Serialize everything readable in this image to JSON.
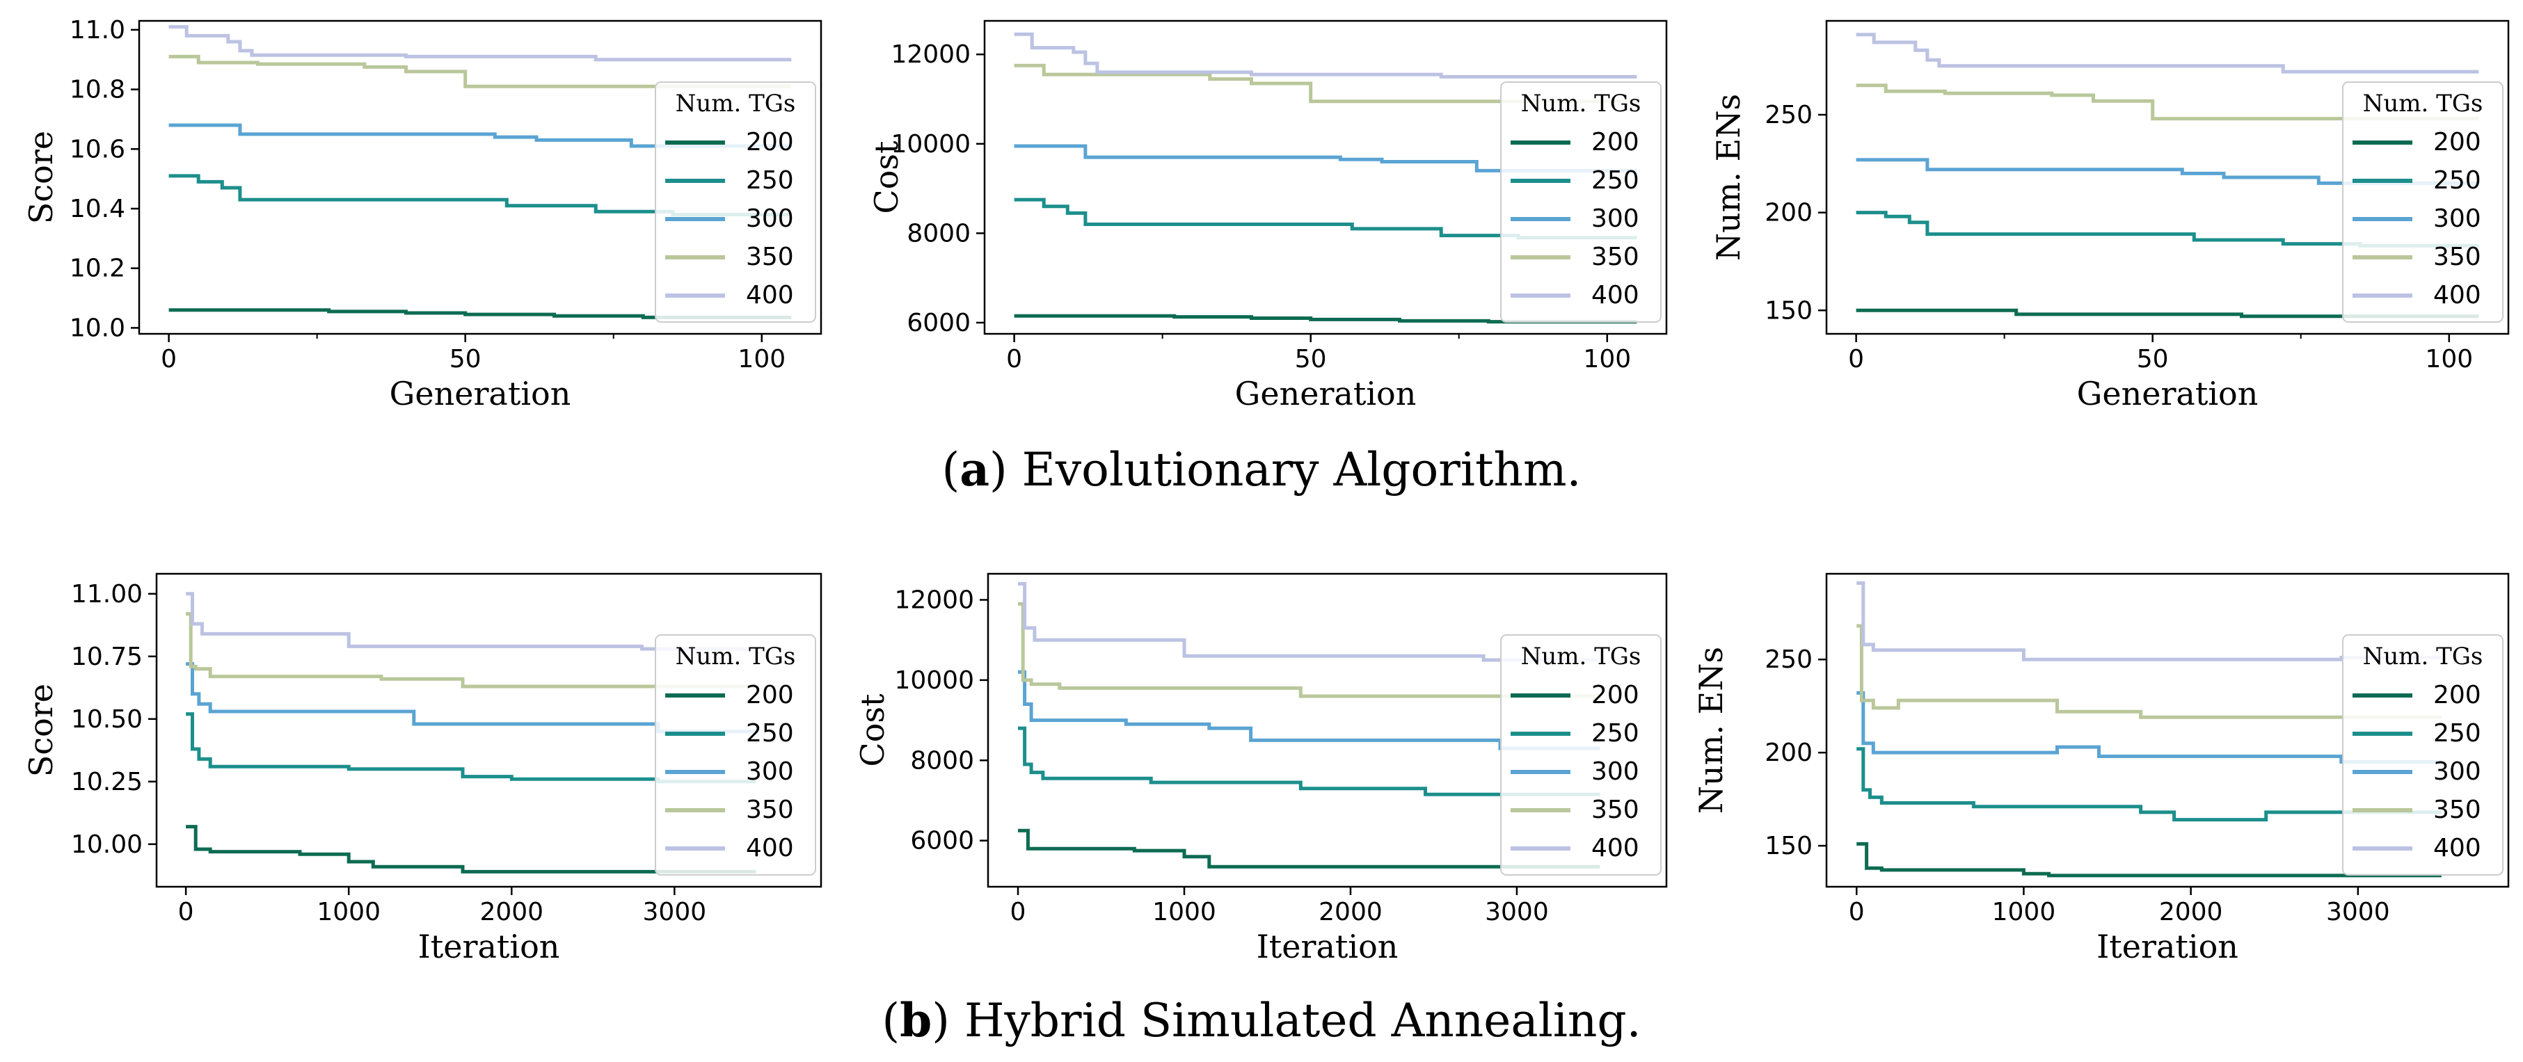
{
  "captions": {
    "a_prefix": "(",
    "a_letter": "a",
    "a_text": ") Evolutionary Algorithm.",
    "b_prefix": "(",
    "b_letter": "b",
    "b_text": ") Hybrid Simulated Annealing."
  },
  "series_colors": {
    "200": "#0d6b52",
    "250": "#1c8f8c",
    "300": "#5aa4d3",
    "350": "#b9c79a",
    "400": "#bcc2e3"
  },
  "chart_data": [
    {
      "id": "ea-score",
      "type": "line",
      "xlabel": "Generation",
      "ylabel": "Score",
      "xlim": [
        -5,
        110
      ],
      "ylim": [
        9.98,
        11.03
      ],
      "xticks": [
        0,
        50,
        100
      ],
      "xtick_labels": [
        "0",
        "50",
        "100"
      ],
      "minor_xticks": [
        25,
        75
      ],
      "yticks": [
        10.0,
        10.2,
        10.4,
        10.6,
        10.8,
        11.0
      ],
      "ytick_labels": [
        "10.0",
        "10.2",
        "10.4",
        "10.6",
        "10.8",
        "11.0"
      ],
      "legend_title": "Num. TGs",
      "legend_position": "right",
      "series": [
        {
          "name": "200",
          "x": [
            0,
            27,
            40,
            50,
            65,
            80,
            105
          ],
          "y": [
            10.06,
            10.055,
            10.05,
            10.045,
            10.04,
            10.035,
            10.035
          ]
        },
        {
          "name": "250",
          "x": [
            0,
            5,
            9,
            12,
            50,
            57,
            72,
            85,
            105
          ],
          "y": [
            10.51,
            10.49,
            10.47,
            10.43,
            10.43,
            10.41,
            10.39,
            10.38,
            10.38
          ]
        },
        {
          "name": "300",
          "x": [
            0,
            10,
            12,
            50,
            55,
            62,
            78,
            105
          ],
          "y": [
            10.68,
            10.68,
            10.65,
            10.65,
            10.64,
            10.63,
            10.61,
            10.61
          ]
        },
        {
          "name": "350",
          "x": [
            0,
            5,
            15,
            33,
            40,
            50,
            105
          ],
          "y": [
            10.91,
            10.89,
            10.885,
            10.875,
            10.86,
            10.81,
            10.81
          ]
        },
        {
          "name": "400",
          "x": [
            0,
            3,
            10,
            12,
            14,
            40,
            72,
            105
          ],
          "y": [
            11.01,
            10.98,
            10.96,
            10.93,
            10.915,
            10.91,
            10.9,
            10.9
          ]
        }
      ]
    },
    {
      "id": "ea-cost",
      "type": "line",
      "xlabel": "Generation",
      "ylabel": "Cost",
      "xlim": [
        -5,
        110
      ],
      "ylim": [
        5750,
        12750
      ],
      "xticks": [
        0,
        50,
        100
      ],
      "xtick_labels": [
        "0",
        "50",
        "100"
      ],
      "minor_xticks": [
        25,
        75
      ],
      "yticks": [
        6000,
        8000,
        10000,
        12000
      ],
      "ytick_labels": [
        "6000",
        "8000",
        "10000",
        "12000"
      ],
      "legend_title": "Num. TGs",
      "legend_position": "right",
      "series": [
        {
          "name": "200",
          "x": [
            0,
            27,
            40,
            50,
            65,
            80,
            105
          ],
          "y": [
            6150,
            6130,
            6100,
            6070,
            6040,
            6020,
            6020
          ]
        },
        {
          "name": "250",
          "x": [
            0,
            5,
            9,
            12,
            50,
            57,
            72,
            85,
            105
          ],
          "y": [
            8750,
            8600,
            8450,
            8200,
            8200,
            8100,
            7950,
            7900,
            7900
          ]
        },
        {
          "name": "300",
          "x": [
            0,
            10,
            12,
            50,
            55,
            62,
            78,
            105
          ],
          "y": [
            9950,
            9950,
            9700,
            9700,
            9650,
            9600,
            9400,
            9400
          ]
        },
        {
          "name": "350",
          "x": [
            0,
            5,
            15,
            33,
            40,
            50,
            105
          ],
          "y": [
            11750,
            11550,
            11550,
            11450,
            11350,
            10950,
            10950
          ]
        },
        {
          "name": "400",
          "x": [
            0,
            3,
            10,
            12,
            14,
            40,
            72,
            105
          ],
          "y": [
            12450,
            12150,
            12050,
            11800,
            11600,
            11550,
            11500,
            11500
          ]
        }
      ]
    },
    {
      "id": "ea-ens",
      "type": "line",
      "xlabel": "Generation",
      "ylabel": "Num. ENs",
      "xlim": [
        -5,
        110
      ],
      "ylim": [
        138,
        298
      ],
      "xticks": [
        0,
        50,
        100
      ],
      "xtick_labels": [
        "0",
        "50",
        "100"
      ],
      "minor_xticks": [
        25,
        75
      ],
      "yticks": [
        150,
        200,
        250
      ],
      "ytick_labels": [
        "150",
        "200",
        "250"
      ],
      "legend_title": "Num. TGs",
      "legend_position": "right",
      "series": [
        {
          "name": "200",
          "x": [
            0,
            27,
            40,
            50,
            65,
            80,
            105
          ],
          "y": [
            150,
            148,
            148,
            148,
            147,
            147,
            147
          ]
        },
        {
          "name": "250",
          "x": [
            0,
            5,
            9,
            12,
            50,
            57,
            72,
            85,
            105
          ],
          "y": [
            200,
            198,
            195,
            189,
            189,
            186,
            184,
            183,
            183
          ]
        },
        {
          "name": "300",
          "x": [
            0,
            10,
            12,
            50,
            55,
            62,
            78,
            105
          ],
          "y": [
            227,
            227,
            222,
            222,
            220,
            218,
            215,
            215
          ]
        },
        {
          "name": "350",
          "x": [
            0,
            5,
            15,
            33,
            40,
            50,
            105
          ],
          "y": [
            265,
            262,
            261,
            260,
            257,
            248,
            248
          ]
        },
        {
          "name": "400",
          "x": [
            0,
            3,
            10,
            12,
            14,
            40,
            72,
            105
          ],
          "y": [
            291,
            287,
            283,
            278,
            275,
            275,
            272,
            272
          ]
        }
      ]
    },
    {
      "id": "hsa-score",
      "type": "line",
      "xlabel": "Iteration",
      "ylabel": "Score",
      "xlim": [
        -180,
        3900
      ],
      "ylim": [
        9.83,
        11.08
      ],
      "xticks": [
        0,
        1000,
        2000,
        3000
      ],
      "xtick_labels": [
        "0",
        "1000",
        "2000",
        "3000"
      ],
      "minor_xticks": [],
      "yticks": [
        10.0,
        10.25,
        10.5,
        10.75,
        11.0
      ],
      "ytick_labels": [
        "10.00",
        "10.25",
        "10.50",
        "10.75",
        "11.00"
      ],
      "legend_title": "Num. TGs",
      "legend_position": "right",
      "series": [
        {
          "name": "200",
          "x": [
            0,
            60,
            150,
            700,
            1000,
            1150,
            1700,
            3500
          ],
          "y": [
            10.07,
            9.98,
            9.97,
            9.96,
            9.93,
            9.91,
            9.89,
            9.89
          ]
        },
        {
          "name": "250",
          "x": [
            0,
            40,
            80,
            150,
            1000,
            1700,
            2000,
            2900,
            3500
          ],
          "y": [
            10.52,
            10.38,
            10.34,
            10.31,
            10.3,
            10.27,
            10.26,
            10.25,
            10.25
          ]
        },
        {
          "name": "300",
          "x": [
            0,
            40,
            80,
            150,
            1400,
            2900,
            3500
          ],
          "y": [
            10.72,
            10.6,
            10.56,
            10.53,
            10.48,
            10.45,
            10.45
          ]
        },
        {
          "name": "350",
          "x": [
            0,
            30,
            60,
            150,
            1200,
            1700,
            3500
          ],
          "y": [
            10.92,
            10.71,
            10.7,
            10.67,
            10.66,
            10.63,
            10.63
          ]
        },
        {
          "name": "400",
          "x": [
            0,
            40,
            100,
            1000,
            2800,
            3500
          ],
          "y": [
            11.0,
            10.88,
            10.84,
            10.79,
            10.78,
            10.78
          ]
        }
      ]
    },
    {
      "id": "hsa-cost",
      "type": "line",
      "xlabel": "Iteration",
      "ylabel": "Cost",
      "xlim": [
        -180,
        3900
      ],
      "ylim": [
        4850,
        12650
      ],
      "xticks": [
        0,
        1000,
        2000,
        3000
      ],
      "xtick_labels": [
        "0",
        "1000",
        "2000",
        "3000"
      ],
      "minor_xticks": [],
      "yticks": [
        6000,
        8000,
        10000,
        12000
      ],
      "ytick_labels": [
        "6000",
        "8000",
        "10000",
        "12000"
      ],
      "legend_title": "Num. TGs",
      "legend_position": "right",
      "series": [
        {
          "name": "200",
          "x": [
            0,
            60,
            700,
            1000,
            1150,
            3500
          ],
          "y": [
            6250,
            5800,
            5750,
            5600,
            5350,
            5350
          ]
        },
        {
          "name": "250",
          "x": [
            0,
            40,
            80,
            150,
            800,
            1700,
            2450,
            3500
          ],
          "y": [
            8800,
            7900,
            7700,
            7550,
            7450,
            7300,
            7150,
            7150
          ]
        },
        {
          "name": "300",
          "x": [
            0,
            40,
            80,
            150,
            650,
            1150,
            1400,
            2900,
            3500
          ],
          "y": [
            10200,
            9400,
            9000,
            9000,
            8900,
            8800,
            8500,
            8300,
            8300
          ]
        },
        {
          "name": "350",
          "x": [
            0,
            30,
            80,
            250,
            1150,
            1700,
            3500
          ],
          "y": [
            11900,
            10000,
            9900,
            9800,
            9800,
            9600,
            9600
          ]
        },
        {
          "name": "400",
          "x": [
            0,
            40,
            100,
            1000,
            2800,
            3500
          ],
          "y": [
            12400,
            11300,
            11000,
            10600,
            10500,
            10500
          ]
        }
      ]
    },
    {
      "id": "hsa-ens",
      "type": "line",
      "xlabel": "Iteration",
      "ylabel": "Num. ENs",
      "xlim": [
        -180,
        3900
      ],
      "ylim": [
        128,
        296
      ],
      "xticks": [
        0,
        1000,
        2000,
        3000
      ],
      "xtick_labels": [
        "0",
        "1000",
        "2000",
        "3000"
      ],
      "minor_xticks": [],
      "yticks": [
        150,
        200,
        250
      ],
      "ytick_labels": [
        "150",
        "200",
        "250"
      ],
      "legend_title": "Num. TGs",
      "legend_position": "right",
      "series": [
        {
          "name": "200",
          "x": [
            0,
            60,
            150,
            1000,
            1150,
            3500
          ],
          "y": [
            151,
            138,
            137,
            135,
            134,
            134
          ]
        },
        {
          "name": "250",
          "x": [
            0,
            40,
            80,
            150,
            700,
            1700,
            1900,
            2450,
            3500
          ],
          "y": [
            202,
            180,
            176,
            173,
            171,
            168,
            164,
            168,
            168
          ]
        },
        {
          "name": "300",
          "x": [
            0,
            40,
            100,
            1200,
            1450,
            2900,
            3500
          ],
          "y": [
            232,
            205,
            200,
            203,
            198,
            195,
            195
          ]
        },
        {
          "name": "350",
          "x": [
            0,
            30,
            100,
            250,
            1200,
            1700,
            3500
          ],
          "y": [
            268,
            228,
            224,
            228,
            222,
            219,
            219
          ]
        },
        {
          "name": "400",
          "x": [
            0,
            40,
            100,
            1000,
            2900,
            3500
          ],
          "y": [
            291,
            258,
            255,
            250,
            251,
            251
          ]
        }
      ]
    }
  ]
}
